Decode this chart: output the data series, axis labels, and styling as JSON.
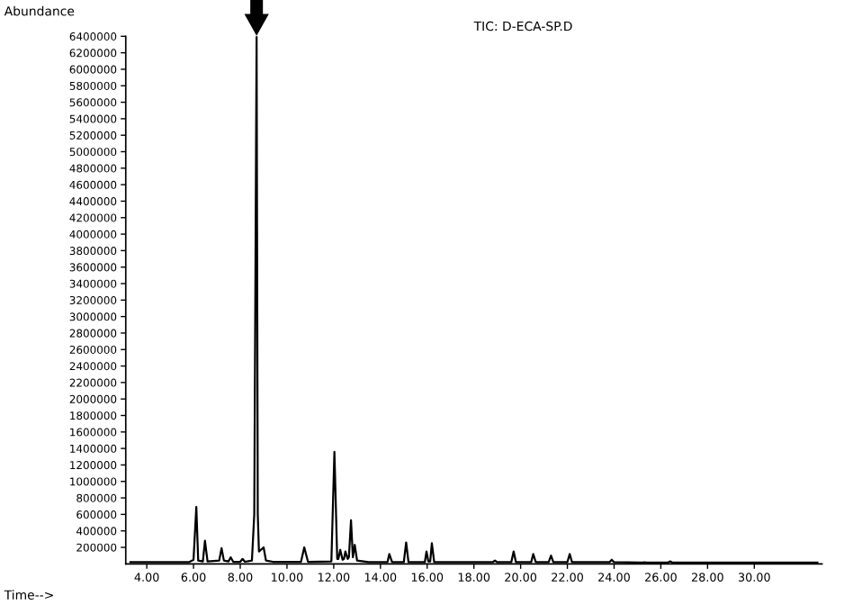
{
  "chart_data": {
    "type": "line",
    "ylabel": "Abundance",
    "xlabel": "Time-->",
    "annotations": [
      "TIC: D-ECA-SP.D"
    ],
    "xlim": [
      3.1,
      32.9
    ],
    "xticks": [
      {
        "value": 4,
        "label": "4.00"
      },
      {
        "value": 6,
        "label": "6.00"
      },
      {
        "value": 8,
        "label": "8.00"
      },
      {
        "value": 10,
        "label": "10.00"
      },
      {
        "value": 12,
        "label": "12.00"
      },
      {
        "value": 14,
        "label": "14.00"
      },
      {
        "value": 16,
        "label": "16.00"
      },
      {
        "value": 18,
        "label": "18.00"
      },
      {
        "value": 20,
        "label": "20.00"
      },
      {
        "value": 22,
        "label": "22.00"
      },
      {
        "value": 24,
        "label": "24.00"
      },
      {
        "value": 26,
        "label": "26.00"
      },
      {
        "value": 28,
        "label": "28.00"
      },
      {
        "value": 30,
        "label": "30.00"
      }
    ],
    "ylim": [
      0,
      6400000
    ],
    "yticks": [
      200000,
      400000,
      600000,
      800000,
      1000000,
      1200000,
      1400000,
      1600000,
      1800000,
      2000000,
      2200000,
      2400000,
      2600000,
      2800000,
      3000000,
      3200000,
      3400000,
      3600000,
      3800000,
      4000000,
      4200000,
      4400000,
      4600000,
      4800000,
      5000000,
      5200000,
      5400000,
      5600000,
      5800000,
      6000000,
      6200000,
      6400000
    ],
    "grid": false,
    "legend": false,
    "marker": "none",
    "line_style": "solid",
    "series": [
      {
        "color": "#000000",
        "x": [
          3.3,
          5.8,
          6.0,
          6.12,
          6.2,
          6.4,
          6.49,
          6.6,
          7.1,
          7.2,
          7.3,
          7.5,
          7.59,
          7.7,
          8.0,
          8.1,
          8.2,
          8.5,
          8.6,
          8.7,
          8.75,
          8.8,
          9.0,
          9.1,
          9.4,
          10.6,
          10.74,
          10.9,
          11.9,
          12.03,
          12.15,
          12.2,
          12.28,
          12.38,
          12.44,
          12.5,
          12.6,
          12.65,
          12.74,
          12.82,
          12.9,
          13.0,
          13.5,
          14.3,
          14.38,
          14.5,
          15.0,
          15.1,
          15.2,
          15.9,
          15.97,
          16.05,
          16.13,
          16.2,
          16.3,
          18.8,
          18.9,
          19.0,
          19.6,
          19.7,
          19.8,
          20.45,
          20.54,
          20.65,
          21.2,
          21.3,
          21.4,
          22.0,
          22.1,
          22.2,
          23.8,
          23.9,
          24.0,
          25.2,
          25.3,
          25.4,
          26.3,
          26.4,
          26.5,
          32.7
        ],
        "values": [
          20000,
          20000,
          50000,
          690000,
          40000,
          30000,
          280000,
          30000,
          40000,
          190000,
          40000,
          30000,
          80000,
          25000,
          25000,
          60000,
          25000,
          40000,
          600000,
          6400000,
          600000,
          150000,
          200000,
          40000,
          25000,
          25000,
          200000,
          25000,
          30000,
          1360000,
          60000,
          60000,
          170000,
          50000,
          60000,
          150000,
          60000,
          80000,
          530000,
          80000,
          230000,
          40000,
          20000,
          20000,
          120000,
          20000,
          20000,
          260000,
          20000,
          20000,
          150000,
          30000,
          30000,
          250000,
          20000,
          20000,
          40000,
          20000,
          20000,
          150000,
          20000,
          20000,
          120000,
          20000,
          20000,
          100000,
          20000,
          20000,
          120000,
          20000,
          20000,
          50000,
          20000,
          15000,
          20000,
          15000,
          15000,
          30000,
          15000,
          15000
        ]
      }
    ]
  }
}
